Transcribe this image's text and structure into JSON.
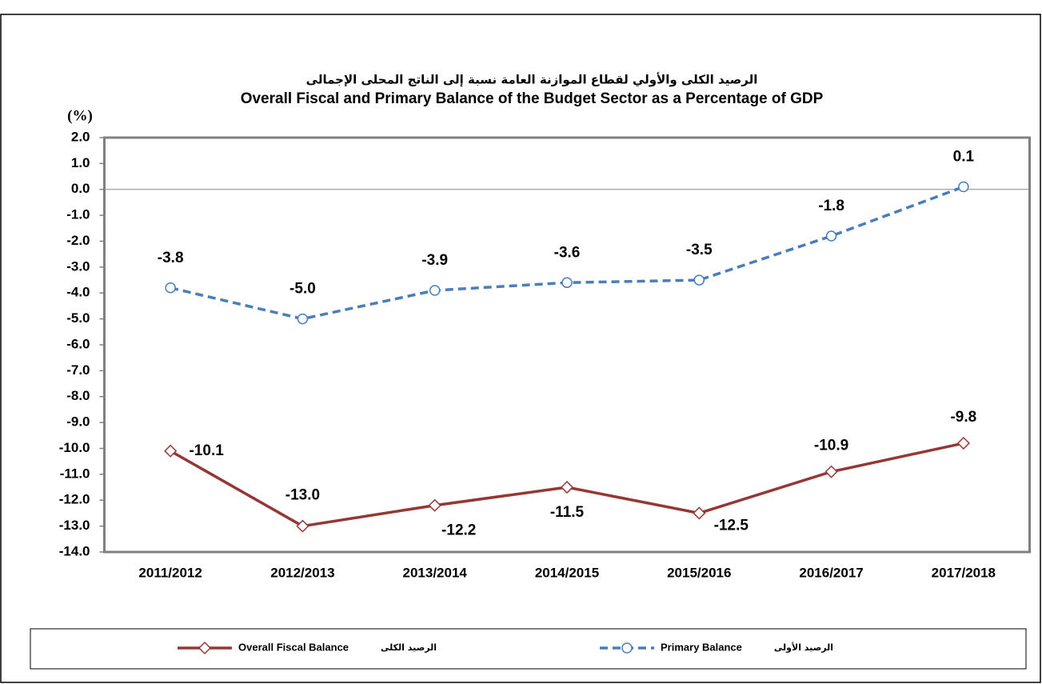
{
  "chart_data": {
    "type": "line",
    "title_ar": "الرصيد الكلى والأولي لقطاع الموازنة العامة نسبة إلى الناتج المحلى الإجمالى",
    "title": "Overall Fiscal and Primary Balance of the Budget Sector as a Percentage of GDP",
    "y_label": "(%)",
    "categories": [
      "2011/2012",
      "2012/2013",
      "2013/2014",
      "2014/2015",
      "2015/2016",
      "2016/2017",
      "2017/2018"
    ],
    "series": [
      {
        "name": "Overall Fiscal Balance",
        "name_ar": "الرصيد الكلى",
        "color": "#953735",
        "marker": "diamond",
        "values": [
          -10.1,
          -13.0,
          -12.2,
          -11.5,
          -12.5,
          -10.9,
          -9.8
        ],
        "value_labels": [
          "-10.1",
          "-13.0",
          "-12.2",
          "-11.5",
          "-12.5",
          "-10.9",
          "-9.8"
        ]
      },
      {
        "name": "Primary Balance",
        "name_ar": "الرصيد الأولى",
        "color": "#4a7ebb",
        "marker": "circle",
        "dashed": true,
        "values": [
          -3.8,
          -5.0,
          -3.9,
          -3.6,
          -3.5,
          -1.8,
          0.1
        ],
        "value_labels": [
          "-3.8",
          "-5.0",
          "-3.9",
          "-3.6",
          "-3.5",
          "-1.8",
          "0.1"
        ]
      }
    ],
    "ylim": [
      -14,
      2
    ],
    "yticks": [
      {
        "value": 2,
        "label": "2.0"
      },
      {
        "value": 1,
        "label": "1.0"
      },
      {
        "value": 0,
        "label": "0.0"
      },
      {
        "value": -1,
        "label": "-1.0"
      },
      {
        "value": -2,
        "label": "-2.0"
      },
      {
        "value": -3,
        "label": "-3.0"
      },
      {
        "value": -4,
        "label": "-4.0"
      },
      {
        "value": -5,
        "label": "-5.0"
      },
      {
        "value": -6,
        "label": "-6.0"
      },
      {
        "value": -7,
        "label": "-7.0"
      },
      {
        "value": -8,
        "label": "-8.0"
      },
      {
        "value": -9,
        "label": "-9.0"
      },
      {
        "value": -10,
        "label": "-10.0"
      },
      {
        "value": -11,
        "label": "-11.0"
      },
      {
        "value": -12,
        "label": "-12.0"
      },
      {
        "value": -13,
        "label": "-13.0"
      },
      {
        "value": -14,
        "label": "-14.0"
      }
    ],
    "grid": false,
    "legend": "bottom"
  }
}
